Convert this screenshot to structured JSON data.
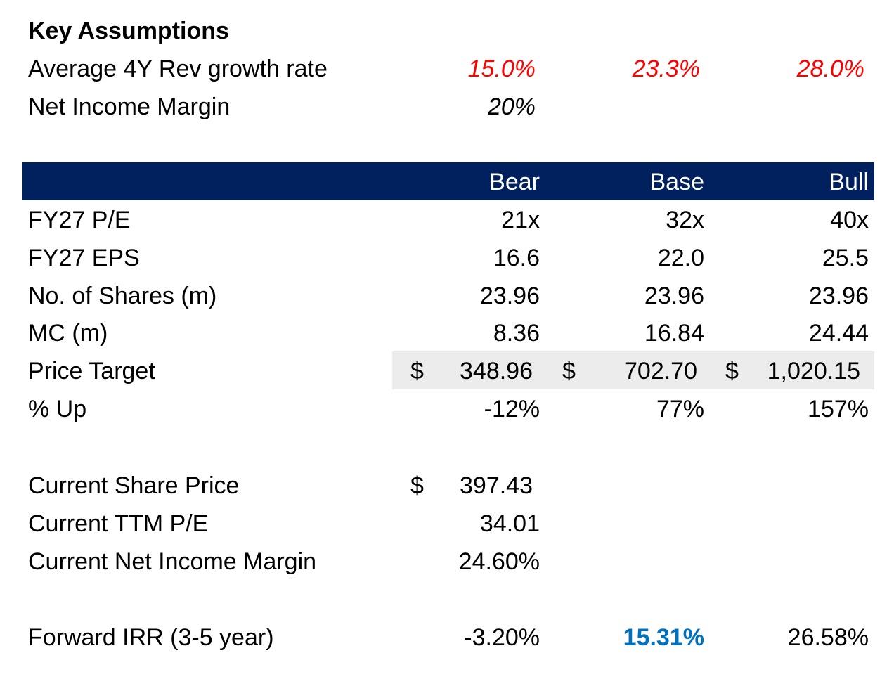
{
  "key_assumptions": {
    "title": "Key Assumptions",
    "rev_growth": {
      "label": "Average 4Y Rev growth rate",
      "bear": "15.0%",
      "base": "23.3%",
      "bull": "28.0%"
    },
    "net_income_margin": {
      "label": "Net Income Margin",
      "bear": "20%"
    }
  },
  "scenario_header": {
    "bear": "Bear",
    "base": "Base",
    "bull": "Bull",
    "header_color": "#00215e"
  },
  "rows": [
    {
      "label": "FY27 P/E",
      "bear": "21x",
      "base": "32x",
      "bull": "40x"
    },
    {
      "label": "FY27 EPS",
      "bear": "16.6",
      "base": "22.0",
      "bull": "25.5"
    },
    {
      "label": "No. of Shares (m)",
      "bear": "23.96",
      "base": "23.96",
      "bull": "23.96"
    },
    {
      "label": "MC (m)",
      "bear": "8.36",
      "base": "16.84",
      "bull": "24.44"
    }
  ],
  "price_target": {
    "label": "Price Target",
    "currency": "$",
    "bear": "348.96",
    "base": "702.70",
    "bull": "1,020.15"
  },
  "pct_up": {
    "label": "% Up",
    "bear": "-12%",
    "base": "77%",
    "bull": "157%"
  },
  "current": {
    "share_price": {
      "label": "Current Share Price",
      "currency": "$",
      "value": "397.43"
    },
    "ttm_pe": {
      "label": "Current TTM P/E",
      "value": "34.01"
    },
    "net_income_margin": {
      "label": "Current Net Income Margin",
      "value": "24.60%"
    }
  },
  "forward_irr": {
    "label": "Forward IRR (3-5 year)",
    "bear": "-3.20%",
    "base": "15.31%",
    "bull": "26.58%",
    "highlight_color": "#0070c0"
  }
}
